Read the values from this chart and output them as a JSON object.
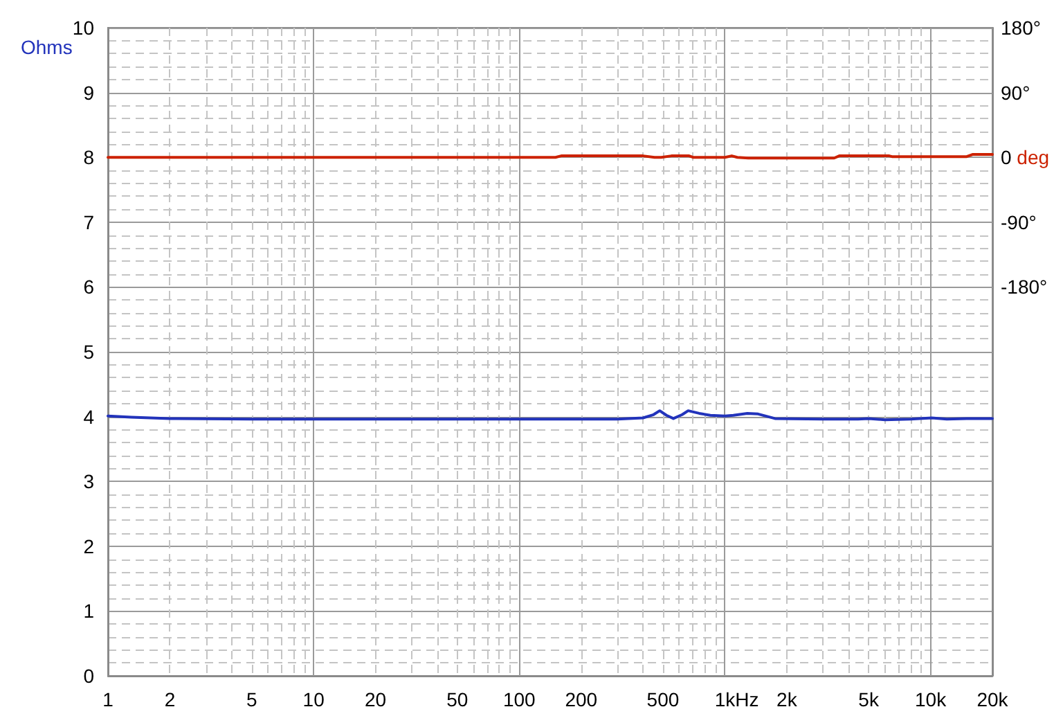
{
  "chart_data": {
    "type": "line",
    "xlabel": "Hz",
    "ylabel": "Ohms",
    "y2label": "deg",
    "xlim": [
      1,
      20000
    ],
    "xticks": [
      1,
      2,
      5,
      10,
      20,
      50,
      100,
      200,
      500,
      {
        "value": 1000,
        "label": "1k"
      },
      {
        "value": 2000,
        "label": "2k"
      },
      {
        "value": 5000,
        "label": "5k"
      },
      {
        "value": 10000,
        "label": "10k"
      },
      {
        "value": 20000,
        "label": "20k"
      }
    ],
    "ylim": [
      0,
      10
    ],
    "yticks": [
      0,
      1,
      2,
      3,
      4,
      5,
      6,
      7,
      8,
      9,
      10
    ],
    "y2lim": [
      -720,
      180
    ],
    "y2ticks": [
      {
        "value": 180,
        "label": "180°"
      },
      {
        "value": 90,
        "label": "90°"
      },
      0,
      {
        "value": -90,
        "label": "-90°"
      },
      {
        "value": -180,
        "label": "-180°"
      }
    ],
    "log": "x",
    "grid": true,
    "series": [
      {
        "color": "#2233bb",
        "x": [
          1,
          1.3,
          2,
          5,
          10,
          100,
          300,
          400,
          450,
          482,
          520,
          562,
          620,
          663,
          750,
          850,
          1000,
          1100,
          1285,
          1450,
          1753,
          3000,
          4440,
          5000,
          6000,
          8000,
          10150,
          12000,
          15000,
          18850,
          20000
        ],
        "values": [
          4.01,
          3.99,
          3.97,
          3.96,
          3.96,
          3.96,
          3.96,
          3.98,
          4.03,
          4.09,
          4.02,
          3.97,
          4.03,
          4.09,
          4.05,
          4.02,
          4.01,
          4.02,
          4.05,
          4.04,
          3.97,
          3.96,
          3.96,
          3.97,
          3.95,
          3.96,
          3.98,
          3.96,
          3.97,
          3.97,
          3.97
        ]
      },
      {
        "color": "#cc2200",
        "axis": "y2",
        "x": [
          1,
          100,
          150,
          160,
          400,
          455,
          490,
          550,
          670,
          700,
          1000,
          1080,
          1150,
          1300,
          3400,
          3600,
          6300,
          6500,
          15000,
          16000,
          20000
        ],
        "values": [
          0,
          0,
          0,
          2,
          2,
          0,
          0,
          2,
          2,
          0,
          0,
          2,
          0,
          -1,
          -1,
          2,
          2,
          1,
          1,
          4,
          4
        ]
      }
    ]
  }
}
